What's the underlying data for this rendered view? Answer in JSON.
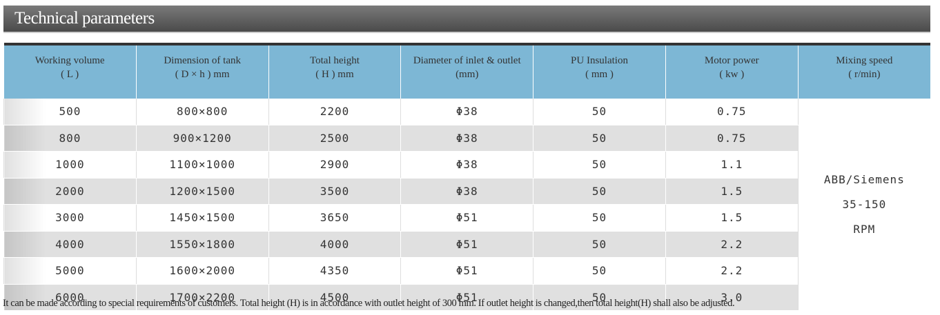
{
  "header": {
    "title": "Technical parameters"
  },
  "table": {
    "columns": [
      [
        "Working volume",
        "( L )"
      ],
      [
        "Dimension of tank",
        "( D × h ) mm"
      ],
      [
        "Total height",
        "( H ) mm"
      ],
      [
        "Diameter of inlet & outlet",
        "(mm)"
      ],
      [
        "PU Insulation",
        "( mm )"
      ],
      [
        "Motor power",
        "( kw )"
      ],
      [
        "Mixing speed",
        "( r/min)"
      ]
    ],
    "rows": [
      [
        "500",
        "800×800",
        "2200",
        "Φ38",
        "50",
        "0.75"
      ],
      [
        "800",
        "900×1200",
        "2500",
        "Φ38",
        "50",
        "0.75"
      ],
      [
        "1000",
        "1100×1000",
        "2900",
        "Φ38",
        "50",
        "1.1"
      ],
      [
        "2000",
        "1200×1500",
        "3500",
        "Φ38",
        "50",
        "1.5"
      ],
      [
        "3000",
        "1450×1500",
        "3650",
        "Φ51",
        "50",
        "1.5"
      ],
      [
        "4000",
        "1550×1800",
        "4000",
        "Φ51",
        "50",
        "2.2"
      ],
      [
        "5000",
        "1600×2000",
        "4350",
        "Φ51",
        "50",
        "2.2"
      ],
      [
        "6000",
        "1700×2200",
        "4500",
        "Φ51",
        "50",
        "3.0"
      ]
    ],
    "merged_cell": [
      "ABB/Siemens",
      "35-150",
      "RPM"
    ]
  },
  "footer": {
    "note": "It can be made according to special requirements of customers. Total height (H) is in accordance with outlet height of 300 mm. If outlet height is changed,then total height(H) shall also be adjusted."
  }
}
